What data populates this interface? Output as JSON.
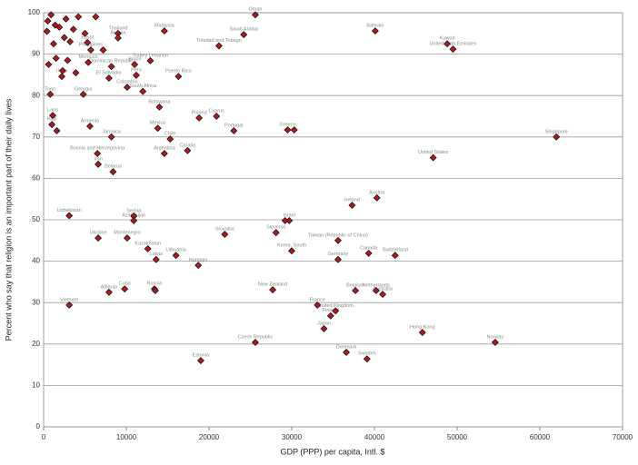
{
  "chart_data": {
    "type": "scatter",
    "x_label": "GDP (PPP) per capita, Intl. $",
    "y_label": "Percent who say that religion is an important part of their daily lives",
    "xlim": [
      0,
      70000
    ],
    "xticks": [
      0,
      10000,
      20000,
      30000,
      40000,
      50000,
      60000,
      70000
    ],
    "ylim": [
      0,
      100
    ],
    "yticks": [
      0,
      10,
      20,
      30,
      40,
      50,
      60,
      70,
      80,
      90,
      100
    ],
    "grid": true,
    "color": "#c0141c",
    "x": [
      25600,
      40100,
      48800,
      49500,
      24200,
      21200,
      14600,
      62000,
      47100,
      29500,
      30300,
      20900,
      18800,
      23000,
      16300,
      12900,
      14000,
      13800,
      15300,
      14600,
      17400,
      5600,
      8200,
      6500,
      8400,
      6600,
      3100,
      10900,
      10900,
      6600,
      10100,
      21900,
      12600,
      16000,
      18700,
      13600,
      7900,
      9800,
      13400,
      13500,
      3100,
      29700,
      29200,
      28100,
      30000,
      27700,
      25600,
      19000,
      35600,
      35600,
      39300,
      42500,
      37300,
      40300,
      33100,
      34700,
      35300,
      33900,
      36600,
      39100,
      45800,
      54600,
      40200,
      37700,
      41000,
      9000,
      9000,
      11000,
      7900,
      8200,
      11200,
      10100,
      12000,
      5700,
      5300,
      5400,
      2200,
      800,
      4800,
      1100,
      500,
      900,
      1400,
      1900,
      2500,
      3200,
      400,
      1200,
      2700,
      3600,
      4200,
      600,
      1500,
      2300,
      1000,
      6300,
      7200,
      2900,
      3900,
      5000,
      1600
    ],
    "values": [
      99.5,
      95.6,
      92.5,
      91.2,
      94.7,
      92,
      95.6,
      70,
      65,
      71.7,
      71.7,
      75,
      74.6,
      71.5,
      84.6,
      88.4,
      77.2,
      72.1,
      69.5,
      66,
      66.7,
      72.6,
      70,
      66,
      61.6,
      63.4,
      51,
      50.9,
      49.8,
      45.6,
      45.6,
      46.5,
      43,
      41.4,
      39,
      40.4,
      32.5,
      33.3,
      33.3,
      32.9,
      29.4,
      49.8,
      49.8,
      46.9,
      42.5,
      33.1,
      20.4,
      16,
      45,
      40.4,
      41.9,
      41.4,
      53.5,
      55.3,
      29.4,
      26.8,
      28,
      23.7,
      18,
      16.4,
      22.8,
      20.4,
      32.9,
      32.9,
      32,
      95,
      93.9,
      87.5,
      84.2,
      87,
      84.9,
      82,
      81,
      91,
      92.8,
      88,
      84.6,
      80.3,
      80.3,
      75.2,
      98,
      99.5,
      97,
      96.5,
      94,
      93,
      95.5,
      92.5,
      98.5,
      96,
      99,
      87.5,
      89,
      86,
      73,
      99,
      91,
      88.5,
      85.5,
      95,
      71.5
    ],
    "point_labels": [
      "Oman",
      "Bahrain",
      "Kuwait",
      "United Arab Emirates",
      "Saudi Arabia",
      "Trinidad and Tobago",
      "Malaysia",
      "Singapore",
      "United States",
      "Greece",
      null,
      "Cyprus",
      "Poland",
      "Portugal",
      "Puerto Rico",
      "Turkey Lebanon",
      "Botswana",
      "Mexico",
      "Chile",
      "Argentina",
      "Croatia",
      "Armenia",
      "Jamaica",
      "Bosnia and Herzegovina",
      "Belarus",
      "Iran",
      "Uzbekistan",
      "Serbia",
      "Azerbaijan",
      "Ukraine",
      "Montenegro",
      "Slovakia",
      "Kazakhstan",
      "Lithuania",
      "Hungary",
      "Latvia",
      "Albania",
      "Cuba",
      "Russia",
      null,
      "Vietnam",
      "Israel",
      null,
      "Slovenia",
      "Korea, South",
      "New Zealand",
      "Czech Republic",
      "Estonia",
      "Taiwan (Republic of China)",
      "Germany",
      "Canada",
      "Switzerland",
      "Ireland",
      "Austria",
      "France",
      "Finland",
      "United Kingdom",
      "Japan",
      "Denmark",
      "Sweden",
      "Hong Kong",
      "Norway",
      "Netherlands",
      "Belgium",
      "Australia",
      "Thailand",
      "Algeria",
      "Brazil",
      "El Salvador",
      "Dominican Republic",
      "Peru",
      "Colombia",
      "South Africa",
      "Philippines",
      "Egypt",
      "Morocco",
      "India",
      "Togo",
      "Georgia",
      "Laos",
      null,
      null,
      null,
      null,
      null,
      null,
      null,
      null,
      null,
      null,
      null,
      null,
      null,
      null,
      "Haiti",
      null,
      null,
      null,
      null,
      null,
      null
    ]
  }
}
